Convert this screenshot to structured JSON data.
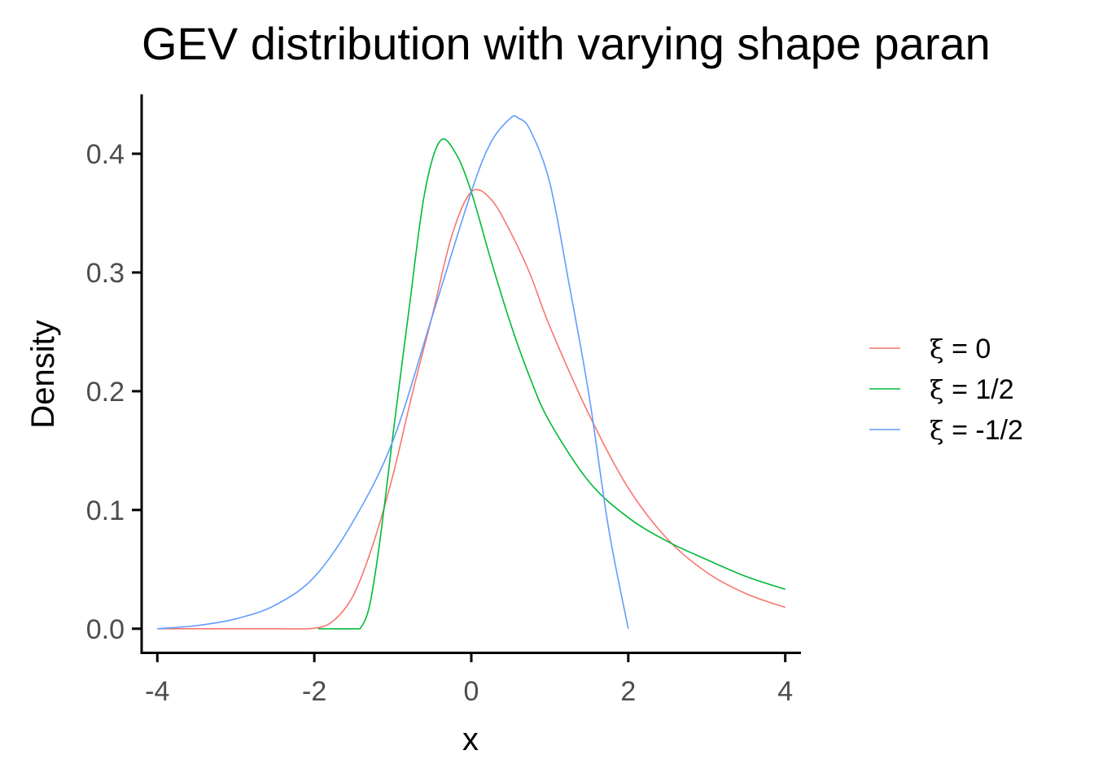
{
  "chart_data": {
    "type": "line",
    "title": "GEV distribution with varying shape paran",
    "xlabel": "x",
    "ylabel": "Density",
    "xlim": [
      -4.2,
      4.2
    ],
    "ylim": [
      -0.02,
      0.45
    ],
    "grid": false,
    "legend_position": "right",
    "x_ticks": [
      {
        "value": -4,
        "label": "-4"
      },
      {
        "value": -2,
        "label": "-2"
      },
      {
        "value": 0,
        "label": "0"
      },
      {
        "value": 2,
        "label": "2"
      },
      {
        "value": 4,
        "label": "4"
      }
    ],
    "y_ticks": [
      {
        "value": 0.0,
        "label": "0.0"
      },
      {
        "value": 0.1,
        "label": "0.1"
      },
      {
        "value": 0.2,
        "label": "0.2"
      },
      {
        "value": 0.3,
        "label": "0.3"
      },
      {
        "value": 0.4,
        "label": "0.4"
      }
    ],
    "series": [
      {
        "name": "ξ = 0",
        "legend_symbol": "ξ",
        "legend_text": " = 0",
        "color": "#F8766D",
        "x": [
          -4.0,
          -3.0,
          -2.5,
          -2.0,
          -1.75,
          -1.5,
          -1.25,
          -1.0,
          -0.75,
          -0.5,
          -0.25,
          0.0,
          0.25,
          0.5,
          0.75,
          1.0,
          1.5,
          2.0,
          2.5,
          3.0,
          3.5,
          4.0
        ],
        "y": [
          0.0,
          0.0,
          0.0,
          0.0004,
          0.0071,
          0.0285,
          0.0715,
          0.1288,
          0.1985,
          0.263,
          0.3305,
          0.3679,
          0.3617,
          0.334,
          0.2985,
          0.2546,
          0.1803,
          0.1185,
          0.0754,
          0.0474,
          0.0295,
          0.0179
        ]
      },
      {
        "name": "ξ = 1/2",
        "legend_symbol": "ξ",
        "legend_text": " = 1/2",
        "color": "#00BA38",
        "x": [
          -1.95,
          -1.5,
          -1.4,
          -1.3,
          -1.2,
          -1.1,
          -1.0,
          -0.8,
          -0.6,
          -0.4,
          -0.2,
          0.0,
          0.25,
          0.5,
          0.75,
          1.0,
          1.5,
          2.0,
          2.5,
          3.0,
          3.5,
          4.0
        ],
        "y": [
          0.0,
          0.0,
          0.0017,
          0.0182,
          0.0571,
          0.1075,
          0.1624,
          0.2655,
          0.3648,
          0.4105,
          0.4005,
          0.3679,
          0.3104,
          0.257,
          0.211,
          0.174,
          0.1238,
          0.0936,
          0.0735,
          0.0582,
          0.044,
          0.0332
        ]
      },
      {
        "name": "ξ = -1/2",
        "legend_symbol": "ξ",
        "legend_text": " = -1/2",
        "color": "#619CFF",
        "x": [
          -4.0,
          -3.5,
          -3.0,
          -2.5,
          -2.0,
          -1.5,
          -1.0,
          -0.5,
          0.0,
          0.25,
          0.5,
          0.6,
          0.75,
          1.0,
          1.25,
          1.5,
          1.75,
          2.0
        ],
        "y": [
          0.0,
          0.0026,
          0.0083,
          0.0198,
          0.0436,
          0.091,
          0.158,
          0.2625,
          0.3679,
          0.4096,
          0.43,
          0.43,
          0.42,
          0.3755,
          0.2888,
          0.1965,
          0.0842,
          0.0
        ]
      }
    ]
  }
}
